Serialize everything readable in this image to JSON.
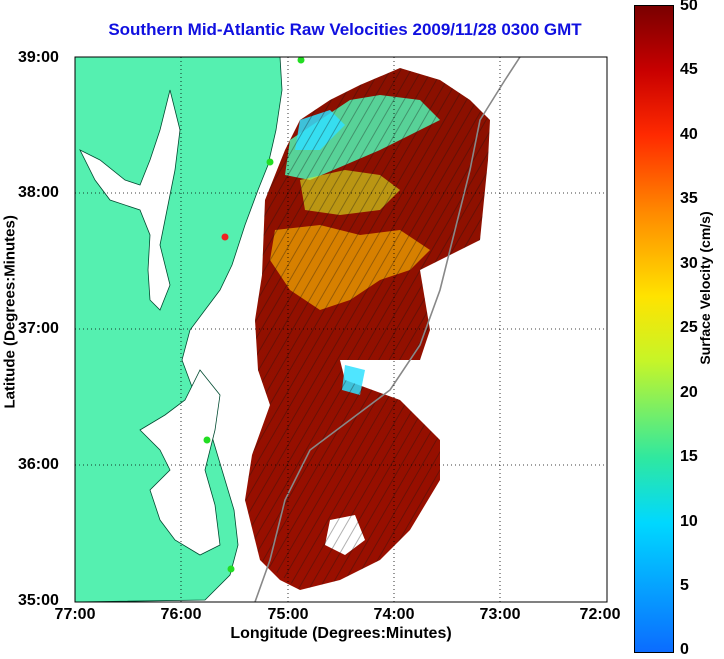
{
  "title": "Southern Mid-Atlantic Raw Velocities 2009/11/28 0300 GMT",
  "axes": {
    "xlabel": "Longitude (Degrees:Minutes)",
    "ylabel": "Latitude (Degrees:Minutes)",
    "xticks": [
      "77:00",
      "76:00",
      "75:00",
      "74:00",
      "73:00",
      "72:00"
    ],
    "yticks": [
      "39:00",
      "38:00",
      "37:00",
      "36:00",
      "35:00"
    ],
    "xlim": [
      -77,
      -72
    ],
    "ylim": [
      35,
      39
    ]
  },
  "colorbar": {
    "label": "Surface Velocity (cm/s)",
    "ticks": [
      "50",
      "45",
      "40",
      "35",
      "30",
      "25",
      "20",
      "15",
      "10",
      "5",
      "0"
    ],
    "range": [
      0,
      50
    ]
  },
  "colors": {
    "land": "#55f0b0",
    "title": "#1010e0",
    "station": "#22dd22",
    "station_alt": "#ee2222"
  }
}
